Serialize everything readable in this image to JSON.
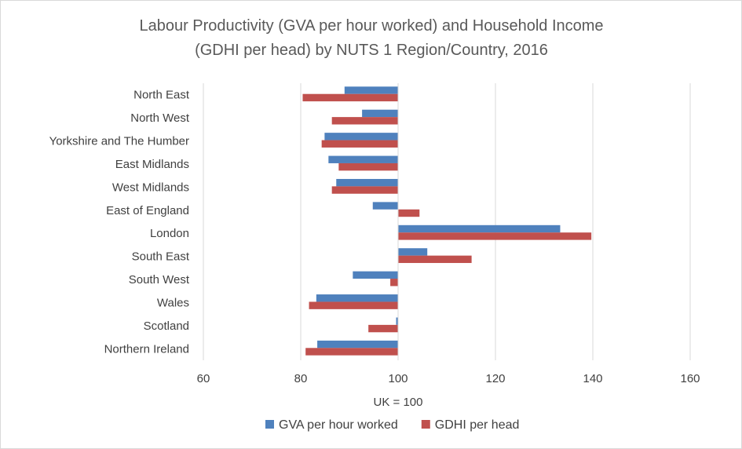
{
  "chart_data": {
    "type": "bar",
    "orientation": "horizontal",
    "title": "Labour Productivity (GVA per hour worked) and Household Income (GDHI per head) by NUTS 1 Region/Country, 2016",
    "title_lines": [
      "Labour Productivity (GVA per hour worked) and Household Income",
      "(GDHI per head) by NUTS 1 Region/Country, 2016"
    ],
    "xlabel": "UK = 100",
    "ylabel": "",
    "xlim": [
      60,
      160
    ],
    "x_ticks": [
      60,
      80,
      100,
      120,
      140,
      160
    ],
    "baseline": 100,
    "grid": "vertical",
    "legend_position": "bottom",
    "categories": [
      "North East",
      "North West",
      "Yorkshire and The Humber",
      "East Midlands",
      "West Midlands",
      "East of England",
      "London",
      "South East",
      "South West",
      "Wales",
      "Scotland",
      "Northern Ireland"
    ],
    "series": [
      {
        "name": "GVA per hour worked",
        "color": "#4f81bd",
        "values": [
          89.0,
          92.6,
          84.9,
          85.7,
          87.3,
          94.8,
          133.3,
          106.0,
          90.7,
          83.2,
          99.6,
          83.4
        ]
      },
      {
        "name": "GDHI per head",
        "color": "#c0504d",
        "values": [
          80.4,
          86.4,
          84.3,
          87.8,
          86.4,
          104.4,
          139.7,
          115.1,
          98.4,
          81.7,
          93.9,
          81.0
        ]
      }
    ]
  }
}
